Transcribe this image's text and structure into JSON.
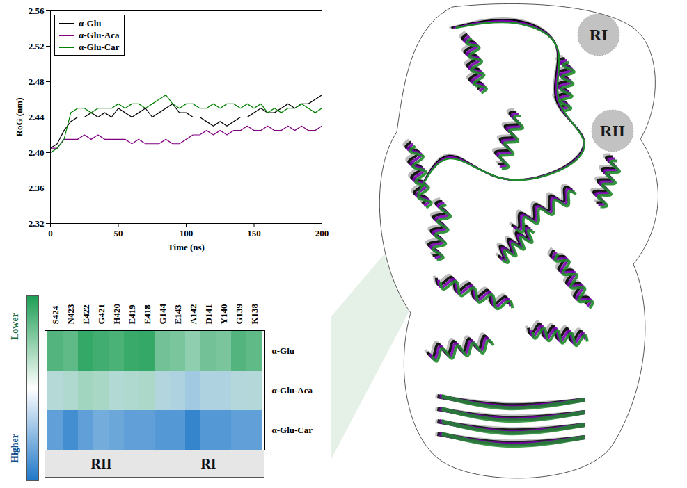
{
  "chart_data": [
    {
      "type": "line",
      "xlabel": "Time (ns)",
      "ylabel": "RoG (nm)",
      "x": [
        0,
        5,
        10,
        15,
        20,
        25,
        30,
        35,
        40,
        45,
        50,
        55,
        60,
        65,
        70,
        75,
        80,
        85,
        90,
        95,
        100,
        105,
        110,
        115,
        120,
        125,
        130,
        135,
        140,
        145,
        150,
        155,
        160,
        165,
        170,
        175,
        180,
        185,
        190,
        195,
        200
      ],
      "series": [
        {
          "name": "α-Glu",
          "color": "#000000",
          "values": [
            2.405,
            2.41,
            2.425,
            2.435,
            2.44,
            2.44,
            2.445,
            2.44,
            2.445,
            2.44,
            2.45,
            2.445,
            2.44,
            2.445,
            2.45,
            2.44,
            2.445,
            2.45,
            2.455,
            2.445,
            2.445,
            2.44,
            2.44,
            2.435,
            2.43,
            2.435,
            2.43,
            2.435,
            2.44,
            2.44,
            2.445,
            2.45,
            2.445,
            2.445,
            2.45,
            2.455,
            2.45,
            2.455,
            2.455,
            2.46,
            2.465
          ]
        },
        {
          "name": "α-Glu-Aca",
          "color": "#800080",
          "values": [
            2.405,
            2.405,
            2.415,
            2.415,
            2.415,
            2.42,
            2.415,
            2.42,
            2.415,
            2.415,
            2.415,
            2.415,
            2.41,
            2.415,
            2.41,
            2.41,
            2.41,
            2.415,
            2.41,
            2.41,
            2.415,
            2.42,
            2.42,
            2.425,
            2.42,
            2.425,
            2.42,
            2.425,
            2.425,
            2.43,
            2.425,
            2.425,
            2.43,
            2.425,
            2.425,
            2.43,
            2.425,
            2.43,
            2.425,
            2.425,
            2.43
          ]
        },
        {
          "name": "α-Glu-Car",
          "color": "#008000",
          "values": [
            2.4,
            2.405,
            2.415,
            2.445,
            2.45,
            2.45,
            2.445,
            2.45,
            2.45,
            2.45,
            2.455,
            2.45,
            2.455,
            2.455,
            2.45,
            2.455,
            2.46,
            2.465,
            2.455,
            2.45,
            2.455,
            2.455,
            2.45,
            2.45,
            2.455,
            2.45,
            2.455,
            2.455,
            2.45,
            2.455,
            2.45,
            2.455,
            2.445,
            2.45,
            2.445,
            2.45,
            2.45,
            2.455,
            2.45,
            2.445,
            2.45
          ]
        }
      ],
      "xlim": [
        0,
        200
      ],
      "xticks": [
        0,
        50,
        100,
        150,
        200
      ],
      "ylim": [
        2.32,
        2.56
      ],
      "yticks": [
        2.32,
        2.36,
        {
          "value": 2.4,
          "label": "2.40"
        },
        2.44,
        2.48,
        2.52,
        2.56
      ],
      "legend": "top-left"
    },
    {
      "type": "heatmap",
      "categories": [
        "S424",
        "N423",
        "E422",
        "G421",
        "H420",
        "E419",
        "E418",
        "G144",
        "E143",
        "A142",
        "D141",
        "Y140",
        "G139",
        "K138"
      ],
      "series": [
        {
          "name": "α-Glu",
          "values": [
            0.12,
            0.15,
            0.05,
            0.08,
            0.1,
            0.06,
            0.05,
            0.2,
            0.22,
            0.28,
            0.2,
            0.22,
            0.12,
            0.15
          ]
        },
        {
          "name": "α-Glu-Aca",
          "values": [
            0.48,
            0.42,
            0.35,
            0.38,
            0.45,
            0.42,
            0.4,
            0.55,
            0.58,
            0.65,
            0.58,
            0.58,
            0.52,
            0.5
          ]
        },
        {
          "name": "α-Glu-Car",
          "values": [
            0.85,
            0.92,
            0.85,
            0.8,
            0.82,
            0.85,
            0.85,
            0.88,
            0.88,
            0.95,
            0.88,
            0.88,
            0.85,
            0.85
          ]
        }
      ],
      "colorbar": {
        "range": [
          0,
          1
        ],
        "low_label": "Lower",
        "high_label": "Higher"
      },
      "regions": [
        {
          "label": "RII",
          "from": "S424",
          "to": "E418"
        },
        {
          "label": "RI",
          "from": "G144",
          "to": "K138"
        }
      ]
    }
  ],
  "structure": {
    "type": "protein_superposition",
    "labels": [
      "RI",
      "RII"
    ]
  }
}
